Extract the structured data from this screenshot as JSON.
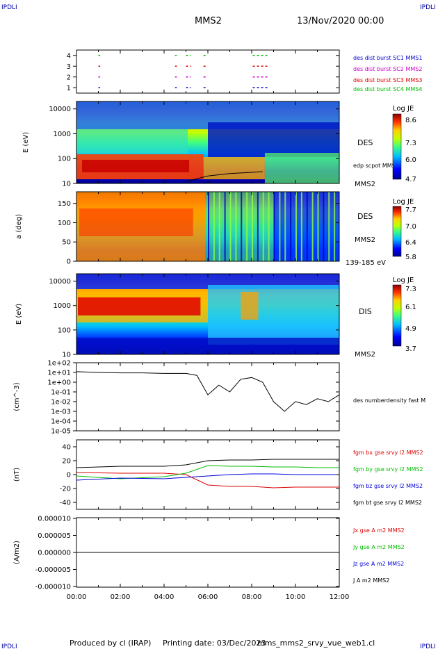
{
  "header": {
    "corner_tl": "IPDLI",
    "corner_tr": "IPDLI",
    "corner_bl": "IPDLI",
    "corner_br": "IPDLI",
    "spacecraft": "MMS2",
    "date_time": "13/Nov/2020 00:00"
  },
  "footer": {
    "produced_by": "Produced by cl (IRAP)",
    "printing_date": "Printing date: 03/Dec/2023",
    "script_name": "mms_mms2_srvy_vue_web1.cl"
  },
  "colors": {
    "mms1": "#0000cc",
    "mms2": "#cc00cc",
    "mms3": "#dd0000",
    "mms4": "#00bb00",
    "bx": "#dd0000",
    "by": "#00bb00",
    "bz": "#0000dd",
    "bt": "#000000"
  },
  "chart_data": [
    {
      "type": "scatter",
      "panel": "burst availability",
      "yticks": [
        "1",
        "2",
        "3",
        "4"
      ],
      "ylim": [
        0.5,
        4.5
      ],
      "xlim_hours": [
        0,
        12
      ],
      "series": [
        {
          "name": "des dist burst SC1 MMS1",
          "level": 1,
          "intervals_h": [
            [
              1.0,
              1.05
            ],
            [
              4.5,
              4.55
            ],
            [
              5.0,
              5.2
            ],
            [
              5.8,
              5.9
            ],
            [
              8.05,
              8.7
            ]
          ]
        },
        {
          "name": "des dist burst SC2 MMS2",
          "level": 2,
          "intervals_h": [
            [
              1.0,
              1.05
            ],
            [
              4.5,
              4.55
            ],
            [
              5.0,
              5.2
            ],
            [
              5.8,
              5.9
            ],
            [
              8.05,
              8.7
            ]
          ]
        },
        {
          "name": "des dist burst SC3 MMS3",
          "level": 3,
          "intervals_h": [
            [
              1.0,
              1.05
            ],
            [
              4.5,
              4.55
            ],
            [
              5.0,
              5.2
            ],
            [
              5.8,
              5.9
            ],
            [
              8.05,
              8.7
            ]
          ]
        },
        {
          "name": "des dist burst SC4 MMS4",
          "level": 4,
          "intervals_h": [
            [
              1.0,
              1.05
            ],
            [
              4.5,
              4.55
            ],
            [
              5.0,
              5.2
            ],
            [
              5.8,
              5.9
            ],
            [
              8.05,
              8.7
            ]
          ]
        }
      ]
    },
    {
      "type": "heatmap",
      "panel": "DES energy spectrogram",
      "ylabel": "E (eV)",
      "yticks": [
        "10",
        "100",
        "1000",
        "10000"
      ],
      "ylim_log10": [
        1,
        4.3
      ],
      "right_label": "DES",
      "right_sub": "MMS2",
      "overlay_label": "edp scpot MMS2",
      "colorbar": {
        "title": "Log JE",
        "ticks": [
          "8.6",
          "7.3",
          "6.0",
          "4.7"
        ],
        "range": [
          4.7,
          8.6
        ]
      },
      "overlay_scpot_h": [
        5.0,
        6.0,
        7.0,
        8.0,
        8.5
      ],
      "overlay_scpot_ev": [
        12,
        20,
        25,
        28,
        30
      ]
    },
    {
      "type": "heatmap",
      "panel": "DES pitch angle",
      "ylabel": "a (deg)",
      "yticks": [
        "0",
        "50",
        "100",
        "150"
      ],
      "ylim": [
        0,
        180
      ],
      "right_label": "DES",
      "right_sub": "MMS2",
      "energy_range": "139-185 eV",
      "colorbar": {
        "title": "Log JE",
        "ticks": [
          "7.7",
          "7.0",
          "6.4",
          "5.8"
        ],
        "range": [
          5.8,
          7.7
        ]
      }
    },
    {
      "type": "heatmap",
      "panel": "DIS energy spectrogram",
      "ylabel": "E (eV)",
      "yticks": [
        "10",
        "100",
        "1000",
        "10000"
      ],
      "ylim_log10": [
        1,
        4.3
      ],
      "right_label": "DIS",
      "right_sub": "MMS2",
      "colorbar": {
        "title": "Log JE",
        "ticks": [
          "7.3",
          "6.1",
          "4.9",
          "3.7"
        ],
        "range": [
          3.7,
          7.3
        ]
      }
    },
    {
      "type": "line",
      "panel": "density",
      "ylabel": "(cm^-3)",
      "yticks": [
        "1e-05",
        "1e-04",
        "1e-03",
        "1e-02",
        "1e-01",
        "1e+00",
        "1e+01",
        "1e+02"
      ],
      "ylim_log10": [
        -5,
        2
      ],
      "series": [
        {
          "name": "des numberdensity fast M",
          "x_h": [
            0,
            1,
            2,
            3,
            4,
            5,
            5.5,
            6.0,
            6.5,
            7.0,
            7.5,
            8.0,
            8.5,
            9.0,
            9.5,
            10.0,
            10.5,
            11.0,
            11.5,
            12.0
          ],
          "y": [
            12,
            10,
            9,
            9,
            8,
            8,
            5,
            0.05,
            0.5,
            0.1,
            2,
            3,
            1,
            0.01,
            0.001,
            0.01,
            0.005,
            0.02,
            0.01,
            0.05
          ]
        }
      ]
    },
    {
      "type": "line",
      "panel": "magnetic field",
      "ylabel": "(nT)",
      "yticks": [
        "-40",
        "-20",
        "0",
        "20",
        "40"
      ],
      "ylim": [
        -50,
        50
      ],
      "series": [
        {
          "name": "fgm bx gse srvy l2 MMS2",
          "x_h": [
            0,
            2,
            4,
            5,
            6,
            7,
            8,
            9,
            10,
            11,
            12
          ],
          "y": [
            3,
            2,
            2,
            0,
            -15,
            -17,
            -17,
            -19,
            -18,
            -18,
            -18
          ]
        },
        {
          "name": "fgm by gse srvy l2 MMS2",
          "x_h": [
            0,
            2,
            4,
            5,
            6,
            7,
            8,
            9,
            10,
            11,
            12
          ],
          "y": [
            -2,
            -6,
            -3,
            2,
            13,
            12,
            12,
            11,
            11,
            10,
            10
          ]
        },
        {
          "name": "fgm bz gse srvy l2 MMS2",
          "x_h": [
            0,
            2,
            4,
            5,
            6,
            7,
            8,
            9,
            10,
            11,
            12
          ],
          "y": [
            -8,
            -5,
            -6,
            -4,
            -2,
            0,
            1,
            1,
            0,
            0,
            0
          ]
        },
        {
          "name": "fgm bt gse srvy l2 MMS2",
          "x_h": [
            0,
            2,
            4,
            5,
            6,
            7,
            8,
            9,
            10,
            11,
            12
          ],
          "y": [
            10,
            12,
            12,
            14,
            20,
            21,
            21,
            22,
            22,
            22,
            22
          ]
        }
      ]
    },
    {
      "type": "line",
      "panel": "current density",
      "ylabel": "(A/m2)",
      "yticks": [
        "-0.000010",
        "-0.000005",
        "0.000000",
        "0.000005",
        "0.000010"
      ],
      "ylim": [
        -1e-05,
        1e-05
      ],
      "xticks": [
        "00:00",
        "02:00",
        "04:00",
        "06:00",
        "08:00",
        "10:00",
        "12:00"
      ],
      "series": [
        {
          "name": "Jx gse A m2 MMS2",
          "x_h": [
            0,
            12
          ],
          "y": [
            0,
            0
          ]
        },
        {
          "name": "Jy gse A m2 MMS2",
          "x_h": [
            0,
            12
          ],
          "y": [
            0,
            0
          ]
        },
        {
          "name": "Jz gse A m2 MMS2",
          "x_h": [
            0,
            12
          ],
          "y": [
            0,
            0
          ]
        },
        {
          "name": "J A m2 MMS2",
          "x_h": [
            0,
            12
          ],
          "y": [
            0,
            0
          ]
        }
      ]
    }
  ]
}
